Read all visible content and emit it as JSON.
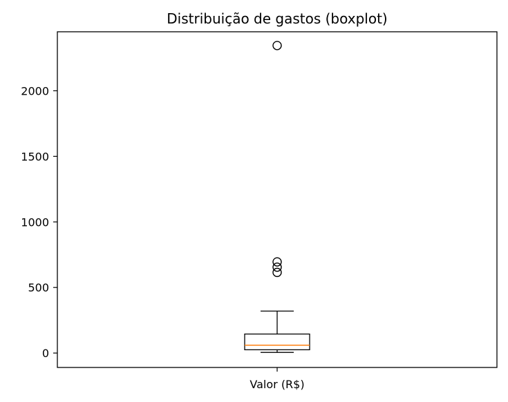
{
  "chart_data": {
    "type": "boxplot",
    "title": "Distribuição de gastos (boxplot)",
    "categories": [
      "Valor (R$)"
    ],
    "xlabel": "",
    "ylabel": "",
    "ylim": [
      -110,
      2450
    ],
    "yticks": [
      0,
      500,
      1000,
      1500,
      2000
    ],
    "grid": false,
    "boxes": [
      {
        "category": "Valor (R$)",
        "whisker_low": 5,
        "q1": 25,
        "median": 60,
        "q3": 145,
        "whisker_high": 320,
        "outliers": [
          615,
          655,
          695,
          2345
        ]
      }
    ],
    "colors": {
      "box": "#000000",
      "median": "#ff7f0e",
      "whisker": "#000000",
      "outlier": "#000000"
    }
  }
}
